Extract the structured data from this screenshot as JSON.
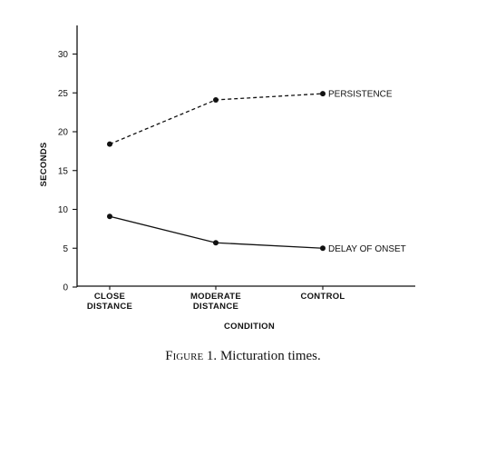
{
  "chart_data": {
    "type": "line",
    "categories": [
      {
        "line1": "CLOSE",
        "line2": "DISTANCE"
      },
      {
        "line1": "MODERATE",
        "line2": "DISTANCE"
      },
      {
        "line1": "CONTROL",
        "line2": ""
      }
    ],
    "series": [
      {
        "name": "PERSISTENCE",
        "values": [
          18.4,
          24.1,
          24.9
        ],
        "style": "dashed"
      },
      {
        "name": "DELAY OF ONSET",
        "values": [
          9.1,
          5.7,
          5.0
        ],
        "style": "solid"
      }
    ],
    "ylabel": "SECONDS",
    "xlabel": "CONDITION",
    "ylim": [
      0,
      30
    ],
    "yticks": [
      0,
      5,
      10,
      15,
      20,
      25,
      30
    ],
    "grid": false,
    "legend": "inline at end of each line"
  },
  "caption": {
    "prefix": "Figure 1.",
    "text": "Micturation times."
  }
}
